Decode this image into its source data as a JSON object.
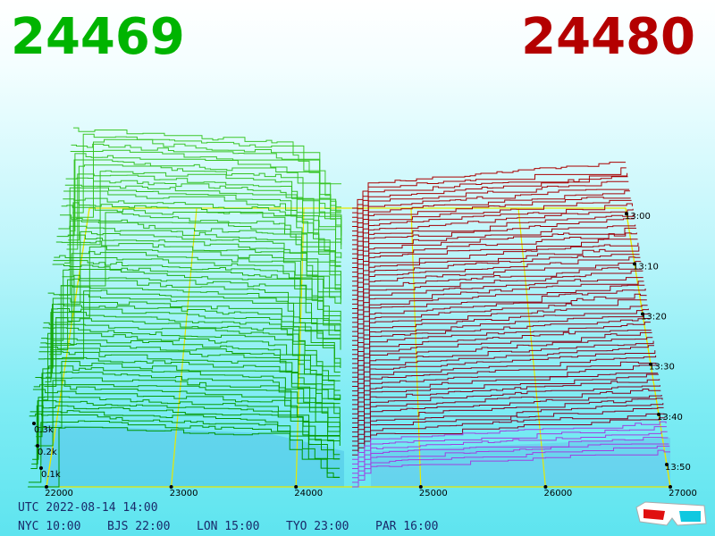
{
  "bid_price": 24469,
  "ask_price": 24480,
  "price_axis": [
    22000,
    23000,
    24000,
    25000,
    26000,
    27000
  ],
  "depth_axis": [
    "0.1k",
    "0.2k",
    "0.3k"
  ],
  "time_axis": [
    "13:00",
    "13:10",
    "13:20",
    "13:30",
    "13:40",
    "13:50"
  ],
  "utc": "UTC 2022-08-14 14:00",
  "city_times": [
    "NYC 10:00",
    "BJS 22:00",
    "LON 15:00",
    "TYO 23:00",
    "PAR 16:00"
  ]
}
